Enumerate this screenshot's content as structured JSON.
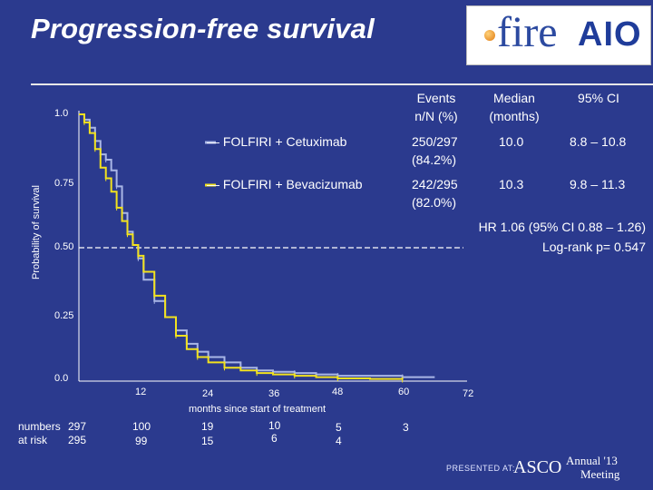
{
  "slide": {
    "title": "Progression-free survival",
    "logo_fire": "fire",
    "logo_aio": "AIO"
  },
  "table": {
    "headers": {
      "events": "Events\nn/N (%)",
      "median": "Median\n(months)",
      "ci": "95% CI"
    },
    "rows": [
      {
        "arm": "— FOLFIRI + Cetuximab",
        "events": "250/297\n(84.2%)",
        "median": "10.0",
        "ci": "8.8 – 10.8",
        "color": "#a9b6e6"
      },
      {
        "arm": "— FOLFIRI + Bevacizumab",
        "events": "242/295\n(82.0%)",
        "median": "10.3",
        "ci": "9.8 – 11.3",
        "color": "#f2e21e"
      }
    ]
  },
  "stats": {
    "hr": "HR 1.06 (95% CI 0.88 – 1.26)",
    "logrank": "Log-rank p= 0.547"
  },
  "risk_table": {
    "label_line1": "numbers",
    "label_line2": "at risk",
    "row1": [
      "297",
      "100",
      "19",
      "10",
      "5",
      "3"
    ],
    "row2": [
      "295",
      "99",
      "15",
      "6",
      "4",
      ""
    ]
  },
  "footer": {
    "presented_at": "PRESENTED AT:",
    "asco": "ASCO",
    "annual": "Annual '13",
    "meeting": "Meeting"
  },
  "colors": {
    "background": "#2b3a8e",
    "cetuximab": "#a9b6e6",
    "bevacizumab": "#f2e21e",
    "axis": "#ffffff"
  },
  "chart_data": {
    "type": "line",
    "title": "Progression-free survival",
    "xlabel": "months since start of treatment",
    "ylabel": "Probability of survival",
    "xlim": [
      0,
      72
    ],
    "ylim": [
      0,
      1.0
    ],
    "x_ticks": [
      "12",
      "24",
      "36",
      "48",
      "60",
      "72"
    ],
    "y_ticks": [
      "1.0",
      "0.75",
      "0.50",
      "0.25",
      "0.0"
    ],
    "reference_line_y": 0.5,
    "series": [
      {
        "name": "FOLFIRI + Cetuximab",
        "color": "#a9b6e6",
        "x": [
          0,
          1,
          2,
          3,
          4,
          5,
          6,
          7,
          8,
          9,
          10,
          11,
          12,
          14,
          16,
          18,
          20,
          22,
          24,
          27,
          30,
          33,
          36,
          40,
          44,
          48,
          54,
          60,
          66
        ],
        "y": [
          1.0,
          0.98,
          0.95,
          0.9,
          0.85,
          0.83,
          0.79,
          0.73,
          0.63,
          0.56,
          0.51,
          0.46,
          0.38,
          0.3,
          0.24,
          0.19,
          0.14,
          0.11,
          0.09,
          0.07,
          0.05,
          0.04,
          0.035,
          0.03,
          0.025,
          0.02,
          0.02,
          0.015,
          0.015
        ]
      },
      {
        "name": "FOLFIRI + Bevacizumab",
        "color": "#f2e21e",
        "x": [
          0,
          1,
          2,
          3,
          4,
          5,
          6,
          7,
          8,
          9,
          10,
          11,
          12,
          14,
          16,
          18,
          20,
          22,
          24,
          27,
          30,
          33,
          36,
          40,
          44,
          48,
          54,
          60
        ],
        "y": [
          1.0,
          0.97,
          0.93,
          0.87,
          0.8,
          0.76,
          0.71,
          0.65,
          0.6,
          0.55,
          0.51,
          0.47,
          0.41,
          0.32,
          0.24,
          0.17,
          0.12,
          0.09,
          0.07,
          0.05,
          0.04,
          0.03,
          0.025,
          0.02,
          0.015,
          0.01,
          0.008,
          0.005
        ]
      }
    ]
  }
}
